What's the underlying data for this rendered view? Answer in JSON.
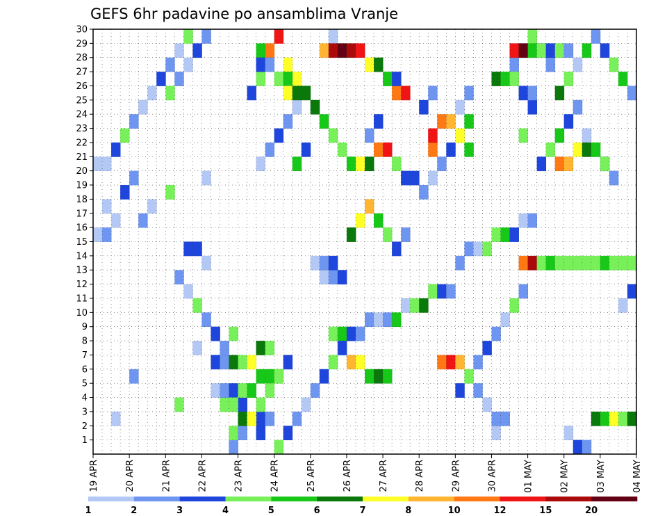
{
  "chart_data": {
    "type": "heatmap",
    "title": "GEFS 6hr padavine po ansamblima Vranje",
    "xlabel": "",
    "ylabel": "",
    "x_tick_labels": [
      "19 APR",
      "20 APR",
      "21 APR",
      "22 APR",
      "23 APR",
      "24 APR",
      "25 APR",
      "26 APR",
      "27 APR",
      "28 APR",
      "29 APR",
      "30 APR",
      "01 MAY",
      "02 MAY",
      "03 MAY",
      "04 MAY"
    ],
    "y_tick_labels": [
      "1",
      "2",
      "3",
      "4",
      "5",
      "6",
      "7",
      "8",
      "9",
      "10",
      "11",
      "12",
      "13",
      "14",
      "15",
      "16",
      "17",
      "18",
      "19",
      "20",
      "21",
      "22",
      "23",
      "24",
      "25",
      "26",
      "27",
      "28",
      "29",
      "30"
    ],
    "time_steps": 60,
    "ensemble_members": 30,
    "grid": true,
    "colorbar_labels": [
      "1",
      "2",
      "3",
      "4",
      "5",
      "6",
      "7",
      "8",
      "10",
      "12",
      "15",
      "20"
    ],
    "colorbar_colors": [
      "#b4c8f5",
      "#6e96f0",
      "#1e46dc",
      "#78f05a",
      "#18c818",
      "#0a780a",
      "#ffff28",
      "#ffb432",
      "#ff7814",
      "#f01414",
      "#aa0a0a",
      "#640014"
    ],
    "cells": [
      [
        15,
        0,
        1
      ],
      [
        15,
        1,
        3
      ],
      [
        16,
        1,
        1
      ],
      [
        18,
        1,
        2
      ],
      [
        18,
        2,
        2
      ],
      [
        19,
        2,
        1
      ],
      [
        14,
        3,
        3
      ],
      [
        15,
        3,
        2
      ],
      [
        16,
        3,
        2
      ],
      [
        13,
        4,
        0
      ],
      [
        14,
        4,
        1
      ],
      [
        15,
        4,
        2
      ],
      [
        16,
        4,
        3
      ],
      [
        17,
        4,
        4
      ],
      [
        18,
        5,
        4
      ],
      [
        19,
        5,
        4
      ],
      [
        20,
        5,
        4
      ],
      [
        13,
        6,
        2
      ],
      [
        14,
        6,
        1
      ],
      [
        15,
        6,
        5
      ],
      [
        16,
        6,
        3
      ],
      [
        17,
        6,
        6
      ],
      [
        18,
        7,
        5
      ],
      [
        19,
        7,
        3
      ],
      [
        26,
        8,
        3
      ],
      [
        27,
        8,
        4
      ],
      [
        28,
        8,
        2
      ],
      [
        29,
        8,
        1
      ],
      [
        30,
        9,
        1
      ],
      [
        31,
        9,
        0
      ],
      [
        32,
        9,
        1
      ],
      [
        33,
        9,
        4
      ],
      [
        34,
        10,
        0
      ],
      [
        35,
        10,
        3
      ],
      [
        36,
        10,
        5
      ],
      [
        37,
        11,
        3
      ],
      [
        38,
        11,
        2
      ],
      [
        39,
        11,
        1
      ],
      [
        25,
        12,
        0
      ],
      [
        26,
        12,
        1
      ],
      [
        27,
        12,
        2
      ],
      [
        24,
        13,
        0
      ],
      [
        25,
        13,
        1
      ],
      [
        26,
        13,
        2
      ],
      [
        40,
        13,
        1
      ],
      [
        41,
        14,
        1
      ],
      [
        42,
        14,
        0
      ],
      [
        43,
        14,
        3
      ],
      [
        44,
        15,
        3
      ],
      [
        45,
        15,
        4
      ],
      [
        46,
        15,
        2
      ],
      [
        47,
        16,
        0
      ],
      [
        48,
        16,
        1
      ],
      [
        2,
        2,
        0
      ],
      [
        4,
        5,
        1
      ],
      [
        9,
        3,
        3
      ],
      [
        11,
        7,
        0
      ],
      [
        22,
        20,
        4
      ],
      [
        23,
        21,
        2
      ],
      [
        30,
        22,
        1
      ],
      [
        31,
        23,
        2
      ],
      [
        47,
        22,
        3
      ],
      [
        48,
        24,
        2
      ],
      [
        35,
        19,
        2
      ],
      [
        36,
        18,
        1
      ],
      [
        51,
        25,
        5
      ],
      [
        52,
        26,
        3
      ],
      [
        53,
        27,
        0
      ],
      [
        54,
        28,
        4
      ],
      [
        55,
        29,
        1
      ],
      [
        56,
        28,
        2
      ],
      [
        57,
        27,
        3
      ],
      [
        58,
        26,
        4
      ],
      [
        59,
        25,
        1
      ],
      [
        12,
        19,
        0
      ],
      [
        8,
        18,
        3
      ],
      [
        6,
        17,
        0
      ],
      [
        5,
        16,
        1
      ],
      [
        0,
        15,
        0
      ],
      [
        1,
        15,
        1
      ],
      [
        2,
        16,
        0
      ],
      [
        1,
        17,
        0
      ],
      [
        3,
        18,
        2
      ],
      [
        4,
        19,
        1
      ],
      [
        0,
        20,
        0
      ],
      [
        1,
        20,
        0
      ],
      [
        2,
        21,
        2
      ],
      [
        3,
        22,
        3
      ],
      [
        4,
        23,
        1
      ],
      [
        5,
        24,
        0
      ],
      [
        6,
        25,
        0
      ],
      [
        7,
        26,
        2
      ],
      [
        8,
        27,
        1
      ],
      [
        9,
        28,
        0
      ],
      [
        10,
        29,
        3
      ],
      [
        10,
        14,
        2
      ],
      [
        11,
        14,
        2
      ],
      [
        12,
        13,
        0
      ],
      [
        9,
        12,
        1
      ],
      [
        10,
        11,
        0
      ],
      [
        11,
        10,
        3
      ],
      [
        12,
        9,
        1
      ],
      [
        13,
        8,
        2
      ],
      [
        14,
        7,
        1
      ],
      [
        15,
        8,
        3
      ],
      [
        20,
        0,
        3
      ],
      [
        21,
        1,
        2
      ],
      [
        22,
        2,
        1
      ],
      [
        23,
        3,
        0
      ],
      [
        24,
        4,
        1
      ],
      [
        25,
        5,
        2
      ],
      [
        26,
        6,
        3
      ],
      [
        27,
        7,
        2
      ],
      [
        42,
        6,
        1
      ],
      [
        43,
        7,
        2
      ],
      [
        44,
        8,
        1
      ],
      [
        45,
        9,
        0
      ],
      [
        46,
        10,
        3
      ],
      [
        47,
        11,
        1
      ],
      [
        44,
        1,
        0
      ],
      [
        45,
        2,
        1
      ],
      [
        49,
        20,
        2
      ],
      [
        50,
        21,
        3
      ],
      [
        51,
        22,
        4
      ],
      [
        52,
        23,
        2
      ],
      [
        53,
        24,
        1
      ],
      [
        54,
        22,
        0
      ],
      [
        55,
        21,
        3
      ],
      [
        56,
        20,
        2
      ],
      [
        57,
        19,
        1
      ],
      [
        28,
        15,
        5
      ],
      [
        29,
        16,
        6
      ],
      [
        30,
        17,
        7
      ],
      [
        31,
        16,
        4
      ],
      [
        32,
        15,
        3
      ],
      [
        33,
        14,
        2
      ],
      [
        34,
        15,
        1
      ],
      [
        37,
        19,
        0
      ],
      [
        38,
        20,
        1
      ],
      [
        39,
        21,
        2
      ],
      [
        40,
        22,
        3
      ],
      [
        41,
        23,
        4
      ],
      [
        36,
        24,
        2
      ],
      [
        37,
        25,
        1
      ],
      [
        18,
        20,
        0
      ],
      [
        19,
        21,
        1
      ],
      [
        20,
        22,
        2
      ],
      [
        21,
        23,
        1
      ],
      [
        22,
        24,
        0
      ],
      [
        17,
        25,
        2
      ],
      [
        18,
        26,
        3
      ],
      [
        40,
        4,
        2
      ],
      [
        41,
        5,
        3
      ],
      [
        42,
        4,
        1
      ],
      [
        43,
        3,
        0
      ],
      [
        44,
        2,
        1
      ],
      [
        40,
        24,
        0
      ],
      [
        41,
        25,
        1
      ],
      [
        8,
        25,
        3
      ],
      [
        9,
        26,
        1
      ],
      [
        10,
        27,
        0
      ],
      [
        11,
        28,
        2
      ],
      [
        12,
        29,
        1
      ],
      [
        26,
        29,
        0
      ],
      [
        27,
        28,
        3
      ],
      [
        46,
        27,
        1
      ],
      [
        47,
        28,
        0
      ],
      [
        48,
        29,
        3
      ],
      [
        49,
        28,
        2
      ],
      [
        50,
        27,
        1
      ],
      [
        58,
        10,
        0
      ],
      [
        59,
        11,
        2
      ],
      [
        33,
        25,
        8
      ],
      [
        34,
        25,
        9
      ],
      [
        25,
        28,
        7
      ],
      [
        26,
        28,
        10
      ],
      [
        27,
        28,
        11
      ],
      [
        19,
        28,
        8
      ],
      [
        20,
        29,
        9
      ],
      [
        21,
        27,
        6
      ],
      [
        22,
        26,
        6
      ],
      [
        23,
        25,
        5
      ],
      [
        24,
        24,
        5
      ],
      [
        25,
        23,
        4
      ],
      [
        26,
        22,
        3
      ],
      [
        27,
        21,
        3
      ],
      [
        28,
        20,
        4
      ],
      [
        29,
        20,
        6
      ],
      [
        30,
        20,
        5
      ],
      [
        31,
        21,
        8
      ],
      [
        32,
        21,
        9
      ],
      [
        33,
        20,
        3
      ],
      [
        34,
        19,
        2
      ],
      [
        47,
        13,
        8
      ],
      [
        48,
        13,
        10
      ],
      [
        49,
        13,
        3
      ],
      [
        50,
        13,
        4
      ],
      [
        51,
        13,
        3
      ],
      [
        52,
        13,
        3
      ],
      [
        53,
        13,
        3
      ],
      [
        54,
        13,
        3
      ],
      [
        55,
        13,
        3
      ],
      [
        56,
        13,
        4
      ],
      [
        57,
        13,
        3
      ],
      [
        58,
        13,
        3
      ],
      [
        59,
        13,
        3
      ],
      [
        38,
        6,
        8
      ],
      [
        39,
        6,
        9
      ],
      [
        40,
        6,
        7
      ],
      [
        28,
        6,
        7
      ],
      [
        29,
        6,
        6
      ],
      [
        30,
        5,
        4
      ],
      [
        31,
        5,
        5
      ],
      [
        32,
        5,
        4
      ],
      [
        15,
        3,
        3
      ],
      [
        16,
        2,
        5
      ],
      [
        17,
        2,
        6
      ],
      [
        18,
        3,
        3
      ],
      [
        19,
        4,
        3
      ],
      [
        20,
        5,
        3
      ],
      [
        21,
        6,
        2
      ],
      [
        55,
        2,
        5
      ],
      [
        56,
        2,
        4
      ],
      [
        57,
        2,
        6
      ],
      [
        58,
        2,
        3
      ],
      [
        59,
        2,
        5
      ],
      [
        52,
        1,
        0
      ],
      [
        53,
        0,
        2
      ],
      [
        54,
        0,
        1
      ],
      [
        18,
        28,
        4
      ],
      [
        18,
        27,
        2
      ],
      [
        19,
        27,
        1
      ],
      [
        20,
        26,
        3
      ],
      [
        21,
        26,
        4
      ],
      [
        21,
        25,
        6
      ],
      [
        22,
        25,
        5
      ],
      [
        28,
        28,
        10
      ],
      [
        29,
        28,
        9
      ],
      [
        30,
        27,
        6
      ],
      [
        31,
        27,
        5
      ],
      [
        32,
        26,
        4
      ],
      [
        33,
        26,
        2
      ],
      [
        46,
        28,
        9
      ],
      [
        47,
        28,
        11
      ],
      [
        48,
        28,
        4
      ],
      [
        49,
        28,
        3
      ],
      [
        50,
        28,
        2
      ],
      [
        51,
        28,
        3
      ],
      [
        52,
        28,
        1
      ],
      [
        51,
        20,
        8
      ],
      [
        52,
        20,
        7
      ],
      [
        53,
        21,
        6
      ],
      [
        54,
        21,
        5
      ],
      [
        55,
        21,
        4
      ],
      [
        56,
        20,
        3
      ],
      [
        37,
        21,
        8
      ],
      [
        37,
        22,
        9
      ],
      [
        38,
        23,
        8
      ],
      [
        39,
        23,
        7
      ],
      [
        40,
        22,
        6
      ],
      [
        41,
        21,
        4
      ],
      [
        44,
        26,
        5
      ],
      [
        45,
        26,
        4
      ],
      [
        46,
        26,
        3
      ],
      [
        47,
        25,
        2
      ],
      [
        48,
        25,
        1
      ]
    ]
  }
}
